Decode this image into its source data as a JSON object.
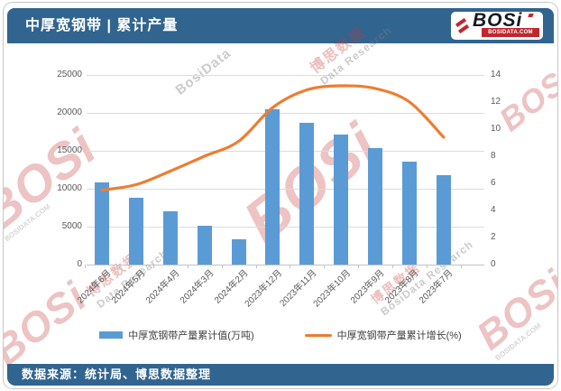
{
  "header": {
    "title": "中厚宽钢带 | 累计产量",
    "logo": {
      "text": "BOSi",
      "domain": "BOSIDATA.COM"
    }
  },
  "footer": {
    "source": "数据来源：统计局、博思数据整理"
  },
  "watermark": {
    "logo": "BOSi",
    "domain": "BOSIDATA.COM",
    "cn": "博思数据",
    "en": "BosiData Research",
    "en_short": "BosiData",
    "en_tail": "Data Research"
  },
  "colors": {
    "header_bg": "#31648F",
    "bar": "#5B9BD5",
    "line": "#ED7D31",
    "grid": "#dcdcdc",
    "axis_text": "#595959",
    "logo_red": "#c0272d"
  },
  "chart_data": {
    "type": "bar",
    "title": "中厚宽钢带 | 累计产量",
    "categories": [
      "2024年6月",
      "2024年5月",
      "2024年4月",
      "2024年3月",
      "2024年2月",
      "2023年12月",
      "2023年11月",
      "2023年10月",
      "2023年9月",
      "2023年8月",
      "2023年7月"
    ],
    "series": [
      {
        "name": "中厚宽钢带产量累计值(万吨)",
        "type": "bar",
        "axis": "left",
        "color": "#5B9BD5",
        "values": [
          10800,
          8850,
          7000,
          5100,
          3300,
          20450,
          18700,
          17200,
          15350,
          13600,
          11750
        ]
      },
      {
        "name": "中厚宽钢带产量累计增长(%)",
        "type": "line",
        "axis": "right",
        "color": "#ED7D31",
        "values": [
          5.5,
          5.9,
          6.9,
          8.0,
          9.1,
          11.6,
          12.9,
          13.2,
          13.0,
          12.0,
          9.4
        ]
      }
    ],
    "left_axis": {
      "ticks": [
        0,
        5000,
        10000,
        15000,
        20000,
        25000
      ],
      "min": 0,
      "max": 25000
    },
    "right_axis": {
      "ticks": [
        0,
        2,
        4,
        6,
        8,
        10,
        12,
        14
      ],
      "min": 0,
      "max": 14
    },
    "xlabel": "",
    "ylabel": "",
    "grid": true,
    "legend_position": "bottom"
  }
}
